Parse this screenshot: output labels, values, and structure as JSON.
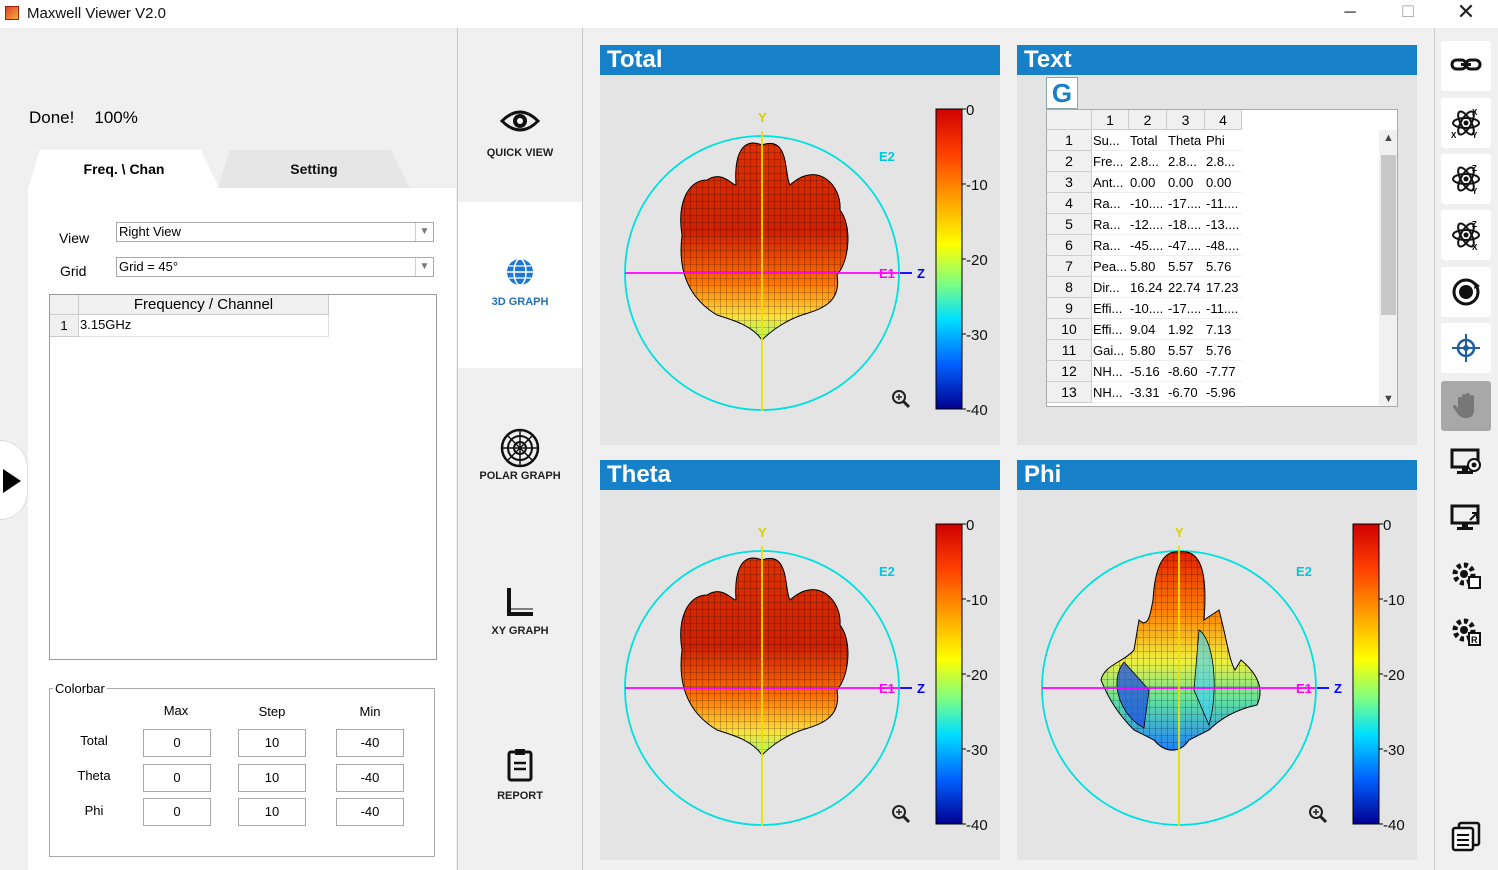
{
  "window": {
    "title": "Maxwell Viewer V2.0",
    "minimize": "─",
    "maximize": "☐",
    "close": "✕"
  },
  "status": {
    "text": "Done!",
    "percent": "100%",
    "progress": 1.0
  },
  "tabs": {
    "freq": "Freq. \\ Chan",
    "setting": "Setting"
  },
  "view": {
    "label": "View",
    "value": "Right View"
  },
  "grid": {
    "label": "Grid",
    "value": "Grid = 45°"
  },
  "freq_table": {
    "header": "Frequency / Channel",
    "rows": [
      {
        "num": "1",
        "value": "3.15GHz"
      }
    ]
  },
  "colorbar_box": {
    "legend": "Colorbar",
    "headers": [
      "Max",
      "Step",
      "Min"
    ],
    "rows": [
      {
        "name": "Total",
        "max": "0",
        "step": "10",
        "min": "-40"
      },
      {
        "name": "Theta",
        "max": "0",
        "step": "10",
        "min": "-40"
      },
      {
        "name": "Phi",
        "max": "0",
        "step": "10",
        "min": "-40"
      }
    ]
  },
  "nav": {
    "quick_view": "QUICK VIEW",
    "graph3d": "3D GRAPH",
    "polar": "POLAR GRAPH",
    "xy": "XY GRAPH",
    "report": "REPORT"
  },
  "graphs": {
    "total": {
      "title": "Total"
    },
    "text": {
      "title": "Text"
    },
    "theta": {
      "title": "Theta"
    },
    "phi": {
      "title": "Phi"
    },
    "axis_labels": {
      "y": "Y",
      "z": "Z",
      "e1": "E1",
      "e2": "E2"
    },
    "colorbar_ticks": [
      "0",
      "-10",
      "-20",
      "-30",
      "-40"
    ]
  },
  "text_panel": {
    "g_button": "G",
    "columns": [
      "1",
      "2",
      "3",
      "4"
    ],
    "rows": [
      {
        "n": "1",
        "c": [
          "Su...",
          "Total",
          "Theta",
          "Phi"
        ]
      },
      {
        "n": "2",
        "c": [
          "Fre...",
          "2.8...",
          "2.8...",
          "2.8..."
        ]
      },
      {
        "n": "3",
        "c": [
          "Ant...",
          "0.00",
          "0.00",
          "0.00"
        ]
      },
      {
        "n": "4",
        "c": [
          "Ra...",
          "-10....",
          "-17....",
          "-11...."
        ]
      },
      {
        "n": "5",
        "c": [
          "Ra...",
          "-12....",
          "-18....",
          "-13...."
        ]
      },
      {
        "n": "6",
        "c": [
          "Ra...",
          "-45....",
          "-47....",
          "-48...."
        ]
      },
      {
        "n": "7",
        "c": [
          "Pea...",
          "5.80",
          "5.57",
          "5.76"
        ]
      },
      {
        "n": "8",
        "c": [
          "Dir...",
          "16.24",
          "22.74",
          "17.23"
        ]
      },
      {
        "n": "9",
        "c": [
          "Effi...",
          "-10....",
          "-17....",
          "-11...."
        ]
      },
      {
        "n": "10",
        "c": [
          "Effi...",
          "9.04",
          "1.92",
          "7.13"
        ]
      },
      {
        "n": "11",
        "c": [
          "Gai...",
          "5.80",
          "5.57",
          "5.76"
        ]
      },
      {
        "n": "12",
        "c": [
          "NH...",
          "-5.16",
          "-8.60",
          "-7.77"
        ]
      },
      {
        "n": "13",
        "c": [
          "NH...",
          "-3.31",
          "-6.70",
          "-5.96"
        ]
      }
    ]
  },
  "toolbar": [
    "link-icon",
    "atom-xy-icon",
    "atom-zy-icon",
    "atom-zx-icon",
    "rotate-360-icon",
    "crosshair-icon",
    "hand-icon",
    "monitor-camera-icon",
    "monitor-export-icon",
    "gear-cube-icon",
    "gear-report-icon",
    "copy-icon"
  ],
  "colors": {
    "accent": "#1680c9",
    "circle": "#00e0e0",
    "e1_axis": "#ff00ff",
    "y_axis": "#e8e000",
    "z_axis": "#0000ff"
  }
}
